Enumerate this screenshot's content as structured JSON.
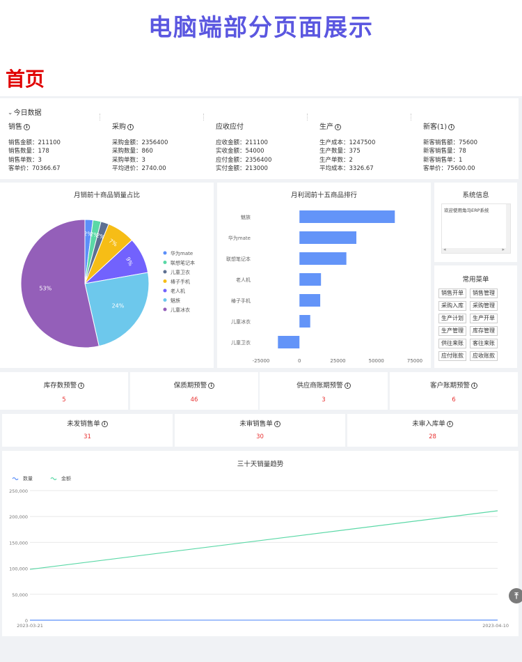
{
  "page_title": "电脑端部分页面展示",
  "section_title": "首页",
  "today": {
    "header": "今日数据",
    "columns": [
      {
        "title": "销售",
        "has_info": true,
        "lines": [
          "销售金额：211100",
          "销售数量：178",
          "销售单数：3",
          "客单价：70366.67"
        ]
      },
      {
        "title": "采购",
        "has_info": true,
        "lines": [
          "采购金额：2356400",
          "采购数量：860",
          "采购单数：3",
          "平均进价：2740.00"
        ]
      },
      {
        "title": "应收应付",
        "has_info": false,
        "lines": [
          "应收金额：211100",
          "实收金额：54000",
          "应付金额：2356400",
          "实付金额：213000"
        ]
      },
      {
        "title": "生产",
        "has_info": true,
        "lines": [
          "生产成本：1247500",
          "生产数量：375",
          "生产单数：2",
          "平均成本：3326.67"
        ]
      },
      {
        "title": "新客(1)",
        "has_info": true,
        "lines": [
          "新客销售额：75600",
          "新客销售量：78",
          "新客销售单：1",
          "客单价：75600.00"
        ]
      }
    ]
  },
  "pie_card": {
    "title": "月销前十商品销量占比"
  },
  "bar_card": {
    "title": "月利润前十五商品排行"
  },
  "chart_data": [
    {
      "type": "pie",
      "title": "月销前十商品销量占比",
      "slices": [
        {
          "name": "华为mate",
          "value": 2,
          "label": "2%",
          "color": "#5b8ff9"
        },
        {
          "name": "联想笔记本",
          "value": 2,
          "label": "2%",
          "color": "#5ad8a6"
        },
        {
          "name": "儿童卫衣",
          "value": 2,
          "label": "2%",
          "color": "#5d7092"
        },
        {
          "name": "椿子手机",
          "value": 7,
          "label": "7%",
          "color": "#f6bd16"
        },
        {
          "name": "老人机",
          "value": 9,
          "label": "9%",
          "color": "#7262fd"
        },
        {
          "name": "魅族",
          "value": 24,
          "label": "24%",
          "color": "#6dc8ec"
        },
        {
          "name": "儿童冰衣",
          "value": 53,
          "label": "53%",
          "color": "#945fb9"
        }
      ]
    },
    {
      "type": "bar",
      "title": "月利润前十五商品排行",
      "orientation": "horizontal",
      "categories": [
        "魅族",
        "华为mate",
        "联想笔记本",
        "老人机",
        "椿子手机",
        "儿童冰衣",
        "儿童卫衣"
      ],
      "values": [
        62000,
        37000,
        30500,
        14000,
        13500,
        7000,
        -14000
      ],
      "xlim": [
        -25000,
        75000
      ],
      "xticks": [
        "-25000",
        "0",
        "25000",
        "50000",
        "75000"
      ],
      "color": "#6394f8"
    },
    {
      "type": "line",
      "title": "三十天销量趋势",
      "x": [
        "2023-03-21",
        "2023-04-10"
      ],
      "series": [
        {
          "name": "数量",
          "color": "#5b8ff9",
          "values": [
            0,
            178
          ]
        },
        {
          "name": "金额",
          "color": "#5ad8a6",
          "values": [
            98000,
            211000
          ]
        }
      ],
      "ylim": [
        0,
        250000
      ],
      "yticks": [
        "0",
        "50,000",
        "100,000",
        "150,000",
        "200,000",
        "250,000"
      ],
      "grid": true,
      "legend": "top-left"
    }
  ],
  "system_info": {
    "title": "系统信息",
    "text": "欢迎使用角马ERP系统",
    "scroll_left": "◂",
    "scroll_right": "▸"
  },
  "common_menu": {
    "title": "常用菜单",
    "items": [
      "销售开单",
      "销售管理",
      "采购入库",
      "采购管理",
      "生产计划",
      "生产开单",
      "生产管理",
      "库存管理",
      "供往来账",
      "客往来账",
      "应付账款",
      "应收账款"
    ]
  },
  "warnings": [
    {
      "label": "库存数预警",
      "value": "5"
    },
    {
      "label": "保质期预警",
      "value": "46"
    },
    {
      "label": "供应商账期预警",
      "value": "3"
    },
    {
      "label": "客户账期预警",
      "value": "6"
    }
  ],
  "orders": [
    {
      "label": "未发销售单",
      "value": "31"
    },
    {
      "label": "未审销售单",
      "value": "30"
    },
    {
      "label": "未审入库单",
      "value": "28"
    }
  ],
  "trend_card": {
    "title": "三十天销量趋势"
  },
  "back_to_top": "⤒"
}
